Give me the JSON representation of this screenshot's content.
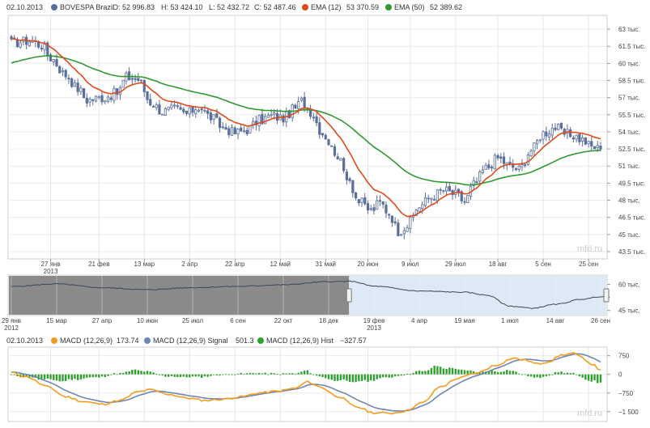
{
  "main_legend": {
    "date": "02.10.2013",
    "series_name": "BOVESPA Brazil",
    "open": "O: 52 996.83",
    "high": "H: 53 424.10",
    "low": "L: 52 432.72",
    "close": "C: 52 487.46",
    "ema12_name": "EMA (12)",
    "ema12_value": "53 370.59",
    "ema50_name": "EMA (50)",
    "ema50_value": "52 389.62"
  },
  "macd_legend": {
    "date": "02.10.2013",
    "macd_name": "MACD (12,26,9)",
    "macd_value": "173.74",
    "signal_name": "MACD (12,26,9) Signal",
    "signal_value": "501.3",
    "hist_name": "MACD (12,26,9) Hist",
    "hist_value": "−327.57"
  },
  "watermark": "mfd.ru",
  "colors": {
    "price": "#5a6e9c",
    "ema12": "#e04a1b",
    "ema50": "#2f9a2f",
    "macd": "#f39c1f",
    "signal": "#6f86b4",
    "hist": "#2ea12e",
    "navigator_dark": "#8a8a8a",
    "navigator_light": "#dde9f5"
  },
  "chart_data": [
    {
      "type": "candlestick",
      "ylim": [
        43000,
        64000
      ],
      "y_ticks": [
        {
          "v": 63000,
          "label": "63 тыс."
        },
        {
          "v": 61500,
          "label": "61.5 тыс."
        },
        {
          "v": 60000,
          "label": "60 тыс."
        },
        {
          "v": 58500,
          "label": "58.5 тыс."
        },
        {
          "v": 57000,
          "label": "57 тыс."
        },
        {
          "v": 55500,
          "label": "55.5 тыс."
        },
        {
          "v": 54000,
          "label": "54 тыс."
        },
        {
          "v": 52500,
          "label": "52.5 тыс."
        },
        {
          "v": 51000,
          "label": "51 тыс."
        },
        {
          "v": 49500,
          "label": "49.5 тыс."
        },
        {
          "v": 48000,
          "label": "48 тыс."
        },
        {
          "v": 46500,
          "label": "46.5 тыс."
        },
        {
          "v": 45000,
          "label": "45 тыс."
        },
        {
          "v": 43500,
          "label": "43.5 тыс."
        }
      ],
      "x_ticks": [
        {
          "i": 13,
          "label": "27 янв",
          "sub": "2013"
        },
        {
          "i": 29,
          "label": "21 фев"
        },
        {
          "i": 44,
          "label": "13 мар"
        },
        {
          "i": 59,
          "label": "2 апр"
        },
        {
          "i": 74,
          "label": "22 апр"
        },
        {
          "i": 89,
          "label": "12 май"
        },
        {
          "i": 104,
          "label": "31 май"
        },
        {
          "i": 118,
          "label": "20 июн"
        },
        {
          "i": 132,
          "label": "9 июл"
        },
        {
          "i": 147,
          "label": "29 июл"
        },
        {
          "i": 161,
          "label": "18 авг"
        },
        {
          "i": 176,
          "label": "5 сен"
        },
        {
          "i": 191,
          "label": "25 сен"
        }
      ],
      "n_bars": 196,
      "close_anchors": [
        [
          0,
          61800
        ],
        [
          6,
          62000
        ],
        [
          10,
          61600
        ],
        [
          13,
          60500
        ],
        [
          18,
          59000
        ],
        [
          22,
          57800
        ],
        [
          25,
          56800
        ],
        [
          30,
          57000
        ],
        [
          35,
          57400
        ],
        [
          38,
          58800
        ],
        [
          42,
          58600
        ],
        [
          46,
          56600
        ],
        [
          50,
          55800
        ],
        [
          54,
          56000
        ],
        [
          58,
          55600
        ],
        [
          62,
          56200
        ],
        [
          66,
          55300
        ],
        [
          70,
          54400
        ],
        [
          74,
          53900
        ],
        [
          78,
          54200
        ],
        [
          82,
          55000
        ],
        [
          86,
          55400
        ],
        [
          90,
          55200
        ],
        [
          94,
          56100
        ],
        [
          96,
          56700
        ],
        [
          99,
          55800
        ],
        [
          103,
          53900
        ],
        [
          107,
          52300
        ],
        [
          111,
          50200
        ],
        [
          115,
          47900
        ],
        [
          119,
          47100
        ],
        [
          122,
          47800
        ],
        [
          125,
          46900
        ],
        [
          128,
          45300
        ],
        [
          131,
          45800
        ],
        [
          135,
          47500
        ],
        [
          139,
          48300
        ],
        [
          143,
          48900
        ],
        [
          147,
          48500
        ],
        [
          150,
          47900
        ],
        [
          153,
          49400
        ],
        [
          157,
          50800
        ],
        [
          161,
          51700
        ],
        [
          165,
          51000
        ],
        [
          168,
          50700
        ],
        [
          172,
          52400
        ],
        [
          176,
          53900
        ],
        [
          180,
          54400
        ],
        [
          183,
          53800
        ],
        [
          186,
          53700
        ],
        [
          189,
          53300
        ],
        [
          192,
          52700
        ],
        [
          195,
          52490
        ]
      ],
      "ema12_last": 53370.59,
      "ema50_last": 52389.62
    },
    {
      "type": "line",
      "name": "navigator",
      "ylim": [
        43000,
        64000
      ],
      "y_ticks": [
        {
          "v": 60000,
          "label": "60 тыс."
        },
        {
          "v": 45000,
          "label": "45 тыс."
        }
      ],
      "x_ticks": [
        {
          "i": 0,
          "label": "29 янв",
          "sub": "2012"
        },
        {
          "i": 1,
          "label": "15 мар"
        },
        {
          "i": 2,
          "label": "27 апр"
        },
        {
          "i": 3,
          "label": "10 июн"
        },
        {
          "i": 4,
          "label": "25 июл"
        },
        {
          "i": 5,
          "label": "6 сен"
        },
        {
          "i": 6,
          "label": "22 окт"
        },
        {
          "i": 7,
          "label": "18 дек"
        },
        {
          "i": 8,
          "label": "19 фев",
          "sub": "2013"
        },
        {
          "i": 9,
          "label": "4 апр"
        },
        {
          "i": 10,
          "label": "19 мая"
        },
        {
          "i": 11,
          "label": "1 июл"
        },
        {
          "i": 12,
          "label": "14 авг"
        },
        {
          "i": 13,
          "label": "26 сен"
        }
      ],
      "selected_from_tick": 7.45,
      "anchors": [
        [
          0,
          58800
        ],
        [
          1,
          60300
        ],
        [
          2,
          58100
        ],
        [
          3,
          57000
        ],
        [
          4,
          58200
        ],
        [
          5,
          58900
        ],
        [
          6,
          59800
        ],
        [
          7,
          61600
        ],
        [
          7.5,
          61800
        ],
        [
          8,
          59000
        ],
        [
          9,
          56200
        ],
        [
          10,
          55500
        ],
        [
          10.5,
          53800
        ],
        [
          11,
          47500
        ],
        [
          11.5,
          46300
        ],
        [
          12,
          48500
        ],
        [
          12.6,
          51500
        ],
        [
          13,
          53000
        ],
        [
          13.2,
          52490
        ]
      ]
    },
    {
      "type": "macd",
      "ylim": [
        -1800,
        1000
      ],
      "y_ticks": [
        {
          "v": 750,
          "label": "750"
        },
        {
          "v": 0,
          "label": "0"
        },
        {
          "v": -750,
          "label": "−750"
        },
        {
          "v": -1500,
          "label": "−1 500"
        }
      ],
      "macd_anchors": [
        [
          0,
          80
        ],
        [
          5,
          -100
        ],
        [
          12,
          -500
        ],
        [
          18,
          -900
        ],
        [
          24,
          -1100
        ],
        [
          30,
          -1200
        ],
        [
          36,
          -1050
        ],
        [
          42,
          -700
        ],
        [
          46,
          -620
        ],
        [
          52,
          -800
        ],
        [
          58,
          -950
        ],
        [
          64,
          -1050
        ],
        [
          70,
          -1000
        ],
        [
          76,
          -900
        ],
        [
          82,
          -750
        ],
        [
          88,
          -680
        ],
        [
          94,
          -560
        ],
        [
          98,
          -300
        ],
        [
          102,
          -500
        ],
        [
          108,
          -880
        ],
        [
          114,
          -1300
        ],
        [
          120,
          -1550
        ],
        [
          126,
          -1560
        ],
        [
          130,
          -1480
        ],
        [
          136,
          -1150
        ],
        [
          142,
          -500
        ],
        [
          148,
          -150
        ],
        [
          154,
          50
        ],
        [
          160,
          350
        ],
        [
          166,
          650
        ],
        [
          170,
          580
        ],
        [
          174,
          420
        ],
        [
          178,
          520
        ],
        [
          182,
          780
        ],
        [
          186,
          840
        ],
        [
          189,
          660
        ],
        [
          192,
          420
        ],
        [
          195,
          174
        ]
      ],
      "signal_last": 501.3,
      "hist_last": -327.57
    }
  ]
}
